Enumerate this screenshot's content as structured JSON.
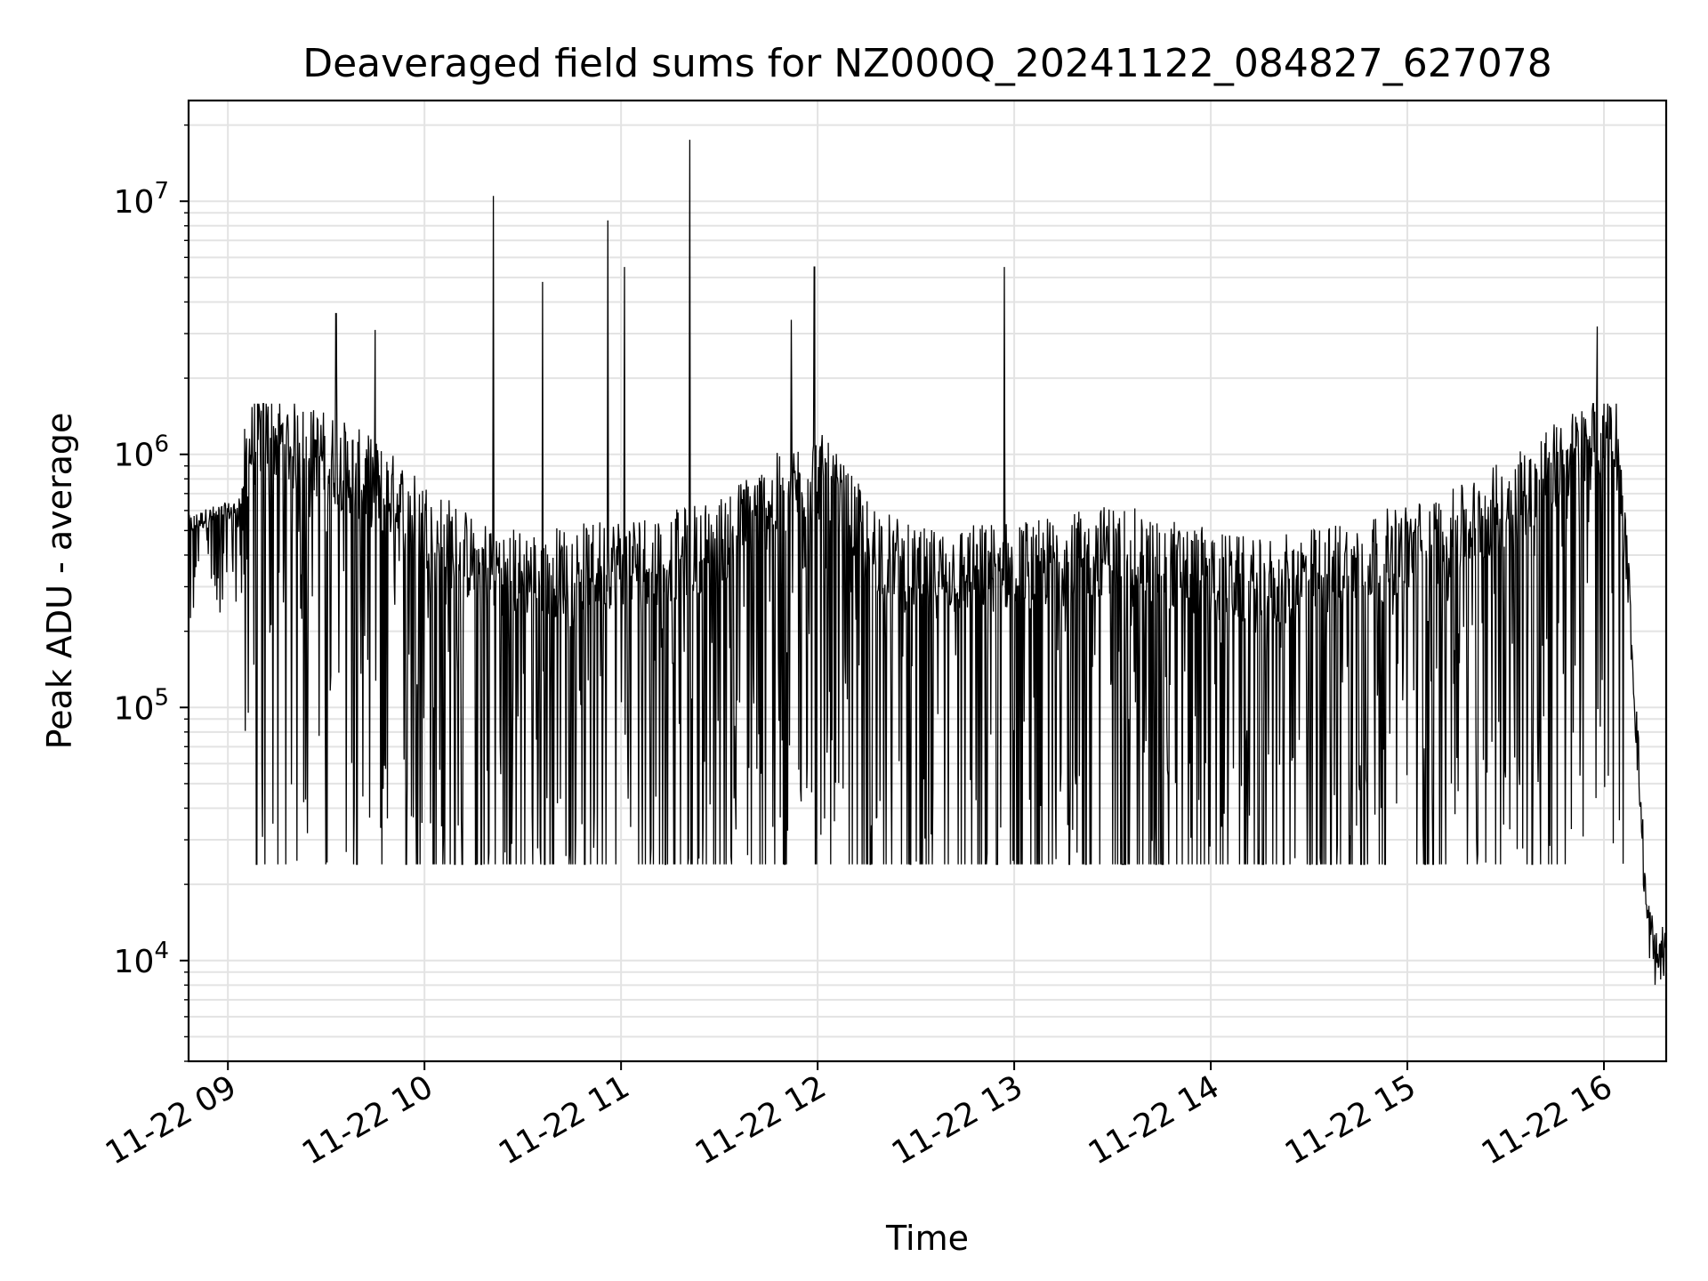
{
  "chart_data": {
    "type": "line",
    "title": "Deaveraged field sums for NZ000Q_20241122_084827_627078",
    "xlabel": "Time",
    "ylabel": "Peak ADU - average",
    "yscale": "log",
    "ylim": [
      4000,
      25000000
    ],
    "xlim": [
      "2024-11-22 08:48:00",
      "2024-11-22 16:19:00"
    ],
    "grid": true,
    "x_ticks": [
      "11-22 09",
      "11-22 10",
      "11-22 11",
      "11-22 12",
      "11-22 13",
      "11-22 14",
      "11-22 15",
      "11-22 16"
    ],
    "y_ticks": [
      {
        "base": "10",
        "exp": "4"
      },
      {
        "base": "10",
        "exp": "5"
      },
      {
        "base": "10",
        "exp": "6"
      },
      {
        "base": "10",
        "exp": "7"
      }
    ],
    "series": [
      {
        "line_color": "#000000",
        "points": [
          [
            "2024-11-22 08:48:00",
            480000
          ],
          [
            "2024-11-22 08:55:00",
            520000
          ],
          [
            "2024-11-22 09:02:00",
            550000
          ],
          [
            "2024-11-22 09:10:00",
            800000
          ],
          [
            "2024-11-22 09:20:00",
            700000
          ],
          [
            "2024-11-22 09:30:00",
            650000
          ],
          [
            "2024-11-22 09:45:00",
            500000
          ],
          [
            "2024-11-22 10:00:00",
            350000
          ],
          [
            "2024-11-22 10:15:00",
            250000
          ],
          [
            "2024-11-22 10:30:00",
            220000
          ],
          [
            "2024-11-22 10:45:00",
            230000
          ],
          [
            "2024-11-22 11:00:00",
            250000
          ],
          [
            "2024-11-22 11:15:00",
            260000
          ],
          [
            "2024-11-22 11:30:00",
            300000
          ],
          [
            "2024-11-22 11:45:00",
            420000
          ],
          [
            "2024-11-22 12:00:00",
            550000
          ],
          [
            "2024-11-22 12:15:00",
            300000
          ],
          [
            "2024-11-22 12:30:00",
            220000
          ],
          [
            "2024-11-22 12:45:00",
            230000
          ],
          [
            "2024-11-22 13:00:00",
            240000
          ],
          [
            "2024-11-22 13:15:00",
            250000
          ],
          [
            "2024-11-22 13:30:00",
            280000
          ],
          [
            "2024-11-22 13:45:00",
            250000
          ],
          [
            "2024-11-22 14:00:00",
            220000
          ],
          [
            "2024-11-22 14:15:00",
            200000
          ],
          [
            "2024-11-22 14:30:00",
            220000
          ],
          [
            "2024-11-22 14:45:00",
            250000
          ],
          [
            "2024-11-22 15:00:00",
            280000
          ],
          [
            "2024-11-22 15:15:00",
            320000
          ],
          [
            "2024-11-22 15:30:00",
            420000
          ],
          [
            "2024-11-22 15:45:00",
            600000
          ],
          [
            "2024-11-22 15:55:00",
            700000
          ],
          [
            "2024-11-22 16:03:00",
            900000
          ],
          [
            "2024-11-22 16:07:00",
            400000
          ],
          [
            "2024-11-22 16:10:00",
            80000
          ],
          [
            "2024-11-22 16:13:00",
            15000
          ],
          [
            "2024-11-22 16:16:00",
            10000
          ],
          [
            "2024-11-22 16:19:00",
            11000
          ]
        ],
        "spikes": [
          [
            "2024-11-22 09:33:00",
            3600000
          ],
          [
            "2024-11-22 09:45:00",
            3100000
          ],
          [
            "2024-11-22 10:21:00",
            10500000
          ],
          [
            "2024-11-22 10:36:00",
            4800000
          ],
          [
            "2024-11-22 10:56:00",
            8400000
          ],
          [
            "2024-11-22 11:01:00",
            5500000
          ],
          [
            "2024-11-22 11:21:00",
            17500000
          ],
          [
            "2024-11-22 11:52:00",
            3400000
          ],
          [
            "2024-11-22 11:59:00",
            5500000
          ],
          [
            "2024-11-22 12:57:00",
            5500000
          ],
          [
            "2024-11-22 15:58:00",
            3200000
          ]
        ]
      }
    ]
  }
}
